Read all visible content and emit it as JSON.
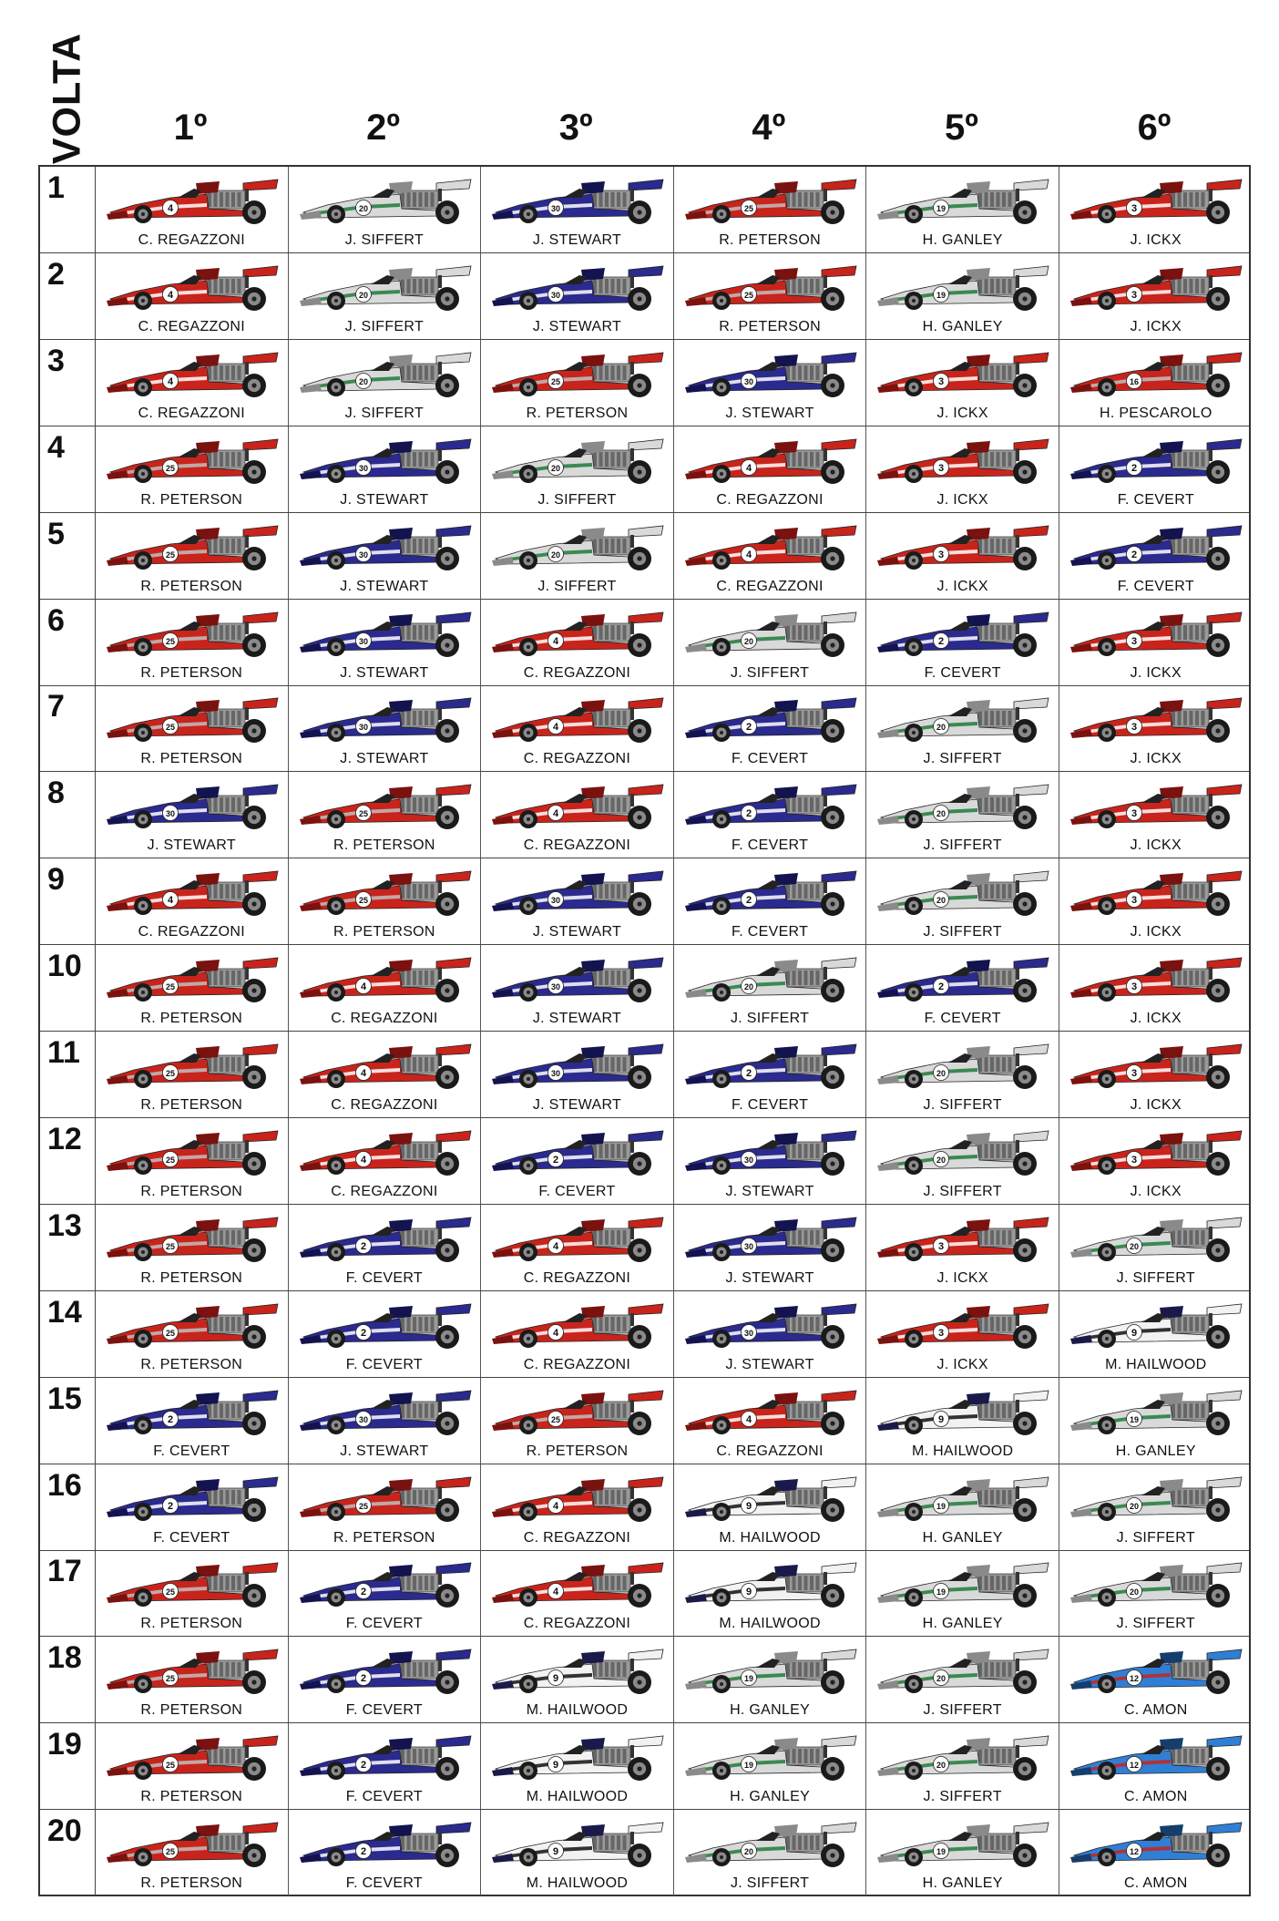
{
  "volta_label": "VOLTA",
  "positions": [
    "1º",
    "2º",
    "3º",
    "4º",
    "5º",
    "6º"
  ],
  "teams": {
    "ferrari": {
      "body": "#c8241b",
      "dark": "#7a1210",
      "accent": "#ffffff"
    },
    "bmw": {
      "body": "#c8241b",
      "dark": "#7a1210",
      "accent": "#c0c0c0"
    },
    "tyrrell": {
      "body": "#2a2a8f",
      "dark": "#13134f",
      "accent": "#ffffff"
    },
    "brm": {
      "body": "#d9d9d9",
      "dark": "#8a8a8a",
      "accent": "#1f7a3a"
    },
    "surtees": {
      "body": "#f2f2f2",
      "dark": "#1a1a4a",
      "accent": "#111111"
    },
    "matra": {
      "body": "#2f7fd6",
      "dark": "#153e6d",
      "accent": "#c8241b"
    }
  },
  "drivers": {
    "regazzoni": {
      "name": "C. REGAZZONI",
      "number": "4",
      "team": "ferrari"
    },
    "ickx": {
      "name": "J. ICKX",
      "number": "3",
      "team": "ferrari"
    },
    "peterson": {
      "name": "R. PETERSON",
      "number": "25",
      "team": "bmw"
    },
    "pescarolo": {
      "name": "H. PESCAROLO",
      "number": "16",
      "team": "bmw"
    },
    "stewart": {
      "name": "J. STEWART",
      "number": "30",
      "team": "tyrrell"
    },
    "cevert": {
      "name": "F. CEVERT",
      "number": "2",
      "team": "tyrrell"
    },
    "siffert": {
      "name": "J. SIFFERT",
      "number": "20",
      "team": "brm"
    },
    "ganley": {
      "name": "H. GANLEY",
      "number": "19",
      "team": "brm"
    },
    "hailwood": {
      "name": "M. HAILWOOD",
      "number": "9",
      "team": "surtees"
    },
    "amon": {
      "name": "C. AMON",
      "number": "12",
      "team": "matra"
    }
  },
  "laps": [
    {
      "lap": "1",
      "order": [
        "regazzoni",
        "siffert",
        "stewart",
        "peterson",
        "ganley",
        "ickx"
      ]
    },
    {
      "lap": "2",
      "order": [
        "regazzoni",
        "siffert",
        "stewart",
        "peterson",
        "ganley",
        "ickx"
      ]
    },
    {
      "lap": "3",
      "order": [
        "regazzoni",
        "siffert",
        "peterson",
        "stewart",
        "ickx",
        "pescarolo"
      ]
    },
    {
      "lap": "4",
      "order": [
        "peterson",
        "stewart",
        "siffert",
        "regazzoni",
        "ickx",
        "cevert"
      ]
    },
    {
      "lap": "5",
      "order": [
        "peterson",
        "stewart",
        "siffert",
        "regazzoni",
        "ickx",
        "cevert"
      ]
    },
    {
      "lap": "6",
      "order": [
        "peterson",
        "stewart",
        "regazzoni",
        "siffert",
        "cevert",
        "ickx"
      ]
    },
    {
      "lap": "7",
      "order": [
        "peterson",
        "stewart",
        "regazzoni",
        "cevert",
        "siffert",
        "ickx"
      ]
    },
    {
      "lap": "8",
      "order": [
        "stewart",
        "peterson",
        "regazzoni",
        "cevert",
        "siffert",
        "ickx"
      ]
    },
    {
      "lap": "9",
      "order": [
        "regazzoni",
        "peterson",
        "stewart",
        "cevert",
        "siffert",
        "ickx"
      ]
    },
    {
      "lap": "10",
      "order": [
        "peterson",
        "regazzoni",
        "stewart",
        "siffert",
        "cevert",
        "ickx"
      ]
    },
    {
      "lap": "11",
      "order": [
        "peterson",
        "regazzoni",
        "stewart",
        "cevert",
        "siffert",
        "ickx"
      ]
    },
    {
      "lap": "12",
      "order": [
        "peterson",
        "regazzoni",
        "cevert",
        "stewart",
        "siffert",
        "ickx"
      ]
    },
    {
      "lap": "13",
      "order": [
        "peterson",
        "cevert",
        "regazzoni",
        "stewart",
        "ickx",
        "siffert"
      ]
    },
    {
      "lap": "14",
      "order": [
        "peterson",
        "cevert",
        "regazzoni",
        "stewart",
        "ickx",
        "hailwood"
      ]
    },
    {
      "lap": "15",
      "order": [
        "cevert",
        "stewart",
        "peterson",
        "regazzoni",
        "hailwood",
        "ganley"
      ]
    },
    {
      "lap": "16",
      "order": [
        "cevert",
        "peterson",
        "regazzoni",
        "hailwood",
        "ganley",
        "siffert"
      ]
    },
    {
      "lap": "17",
      "order": [
        "peterson",
        "cevert",
        "regazzoni",
        "hailwood",
        "ganley",
        "siffert"
      ]
    },
    {
      "lap": "18",
      "order": [
        "peterson",
        "cevert",
        "hailwood",
        "ganley",
        "siffert",
        "amon"
      ]
    },
    {
      "lap": "19",
      "order": [
        "peterson",
        "cevert",
        "hailwood",
        "ganley",
        "siffert",
        "amon"
      ]
    },
    {
      "lap": "20",
      "order": [
        "peterson",
        "cevert",
        "hailwood",
        "siffert",
        "ganley",
        "amon"
      ]
    }
  ]
}
